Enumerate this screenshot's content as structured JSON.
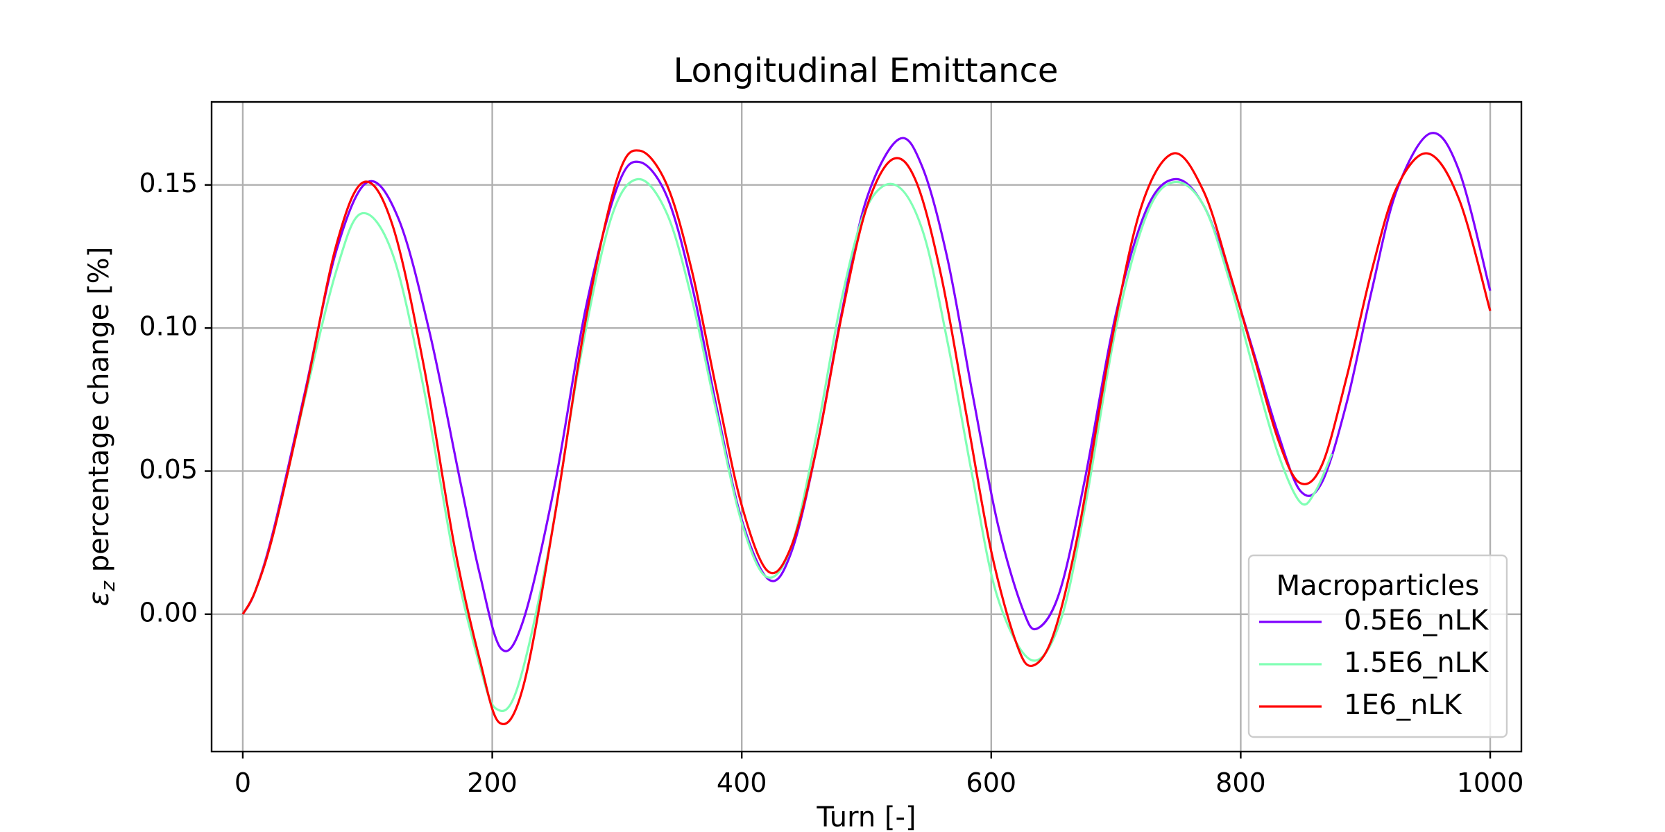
{
  "chart_data": {
    "type": "line",
    "title": "Longitudinal Emittance",
    "xlabel": "Turn [-]",
    "ylabel_symbol": "ε",
    "ylabel_subscript": "z",
    "ylabel_rest": " percentage change [%]",
    "xlim": [
      -25,
      1025
    ],
    "ylim": [
      -0.048,
      0.179
    ],
    "x_ticks": [
      0,
      200,
      400,
      600,
      800,
      1000
    ],
    "x_tick_labels": [
      "0",
      "200",
      "400",
      "600",
      "800",
      "1000"
    ],
    "y_ticks": [
      0.0,
      0.05,
      0.1,
      0.15
    ],
    "y_tick_labels": [
      "0.00",
      "0.05",
      "0.10",
      "0.15"
    ],
    "grid": true,
    "legend": {
      "title": "Macroparticles",
      "position": "lower-right"
    },
    "series": [
      {
        "name": "0.5E6_nLK",
        "color": "#7f00ff",
        "x": [
          0,
          10,
          25,
          50,
          75,
          100,
          125,
          150,
          175,
          190,
          207,
          225,
          250,
          275,
          300,
          318,
          340,
          360,
          380,
          400,
          422,
          440,
          460,
          480,
          500,
          526,
          545,
          565,
          585,
          605,
          625,
          637,
          655,
          675,
          700,
          725,
          748,
          770,
          790,
          810,
          830,
          848,
          865,
          885,
          905,
          925,
          952,
          975,
          1000
        ],
        "y": [
          0.0,
          0.008,
          0.03,
          0.078,
          0.127,
          0.151,
          0.138,
          0.098,
          0.045,
          0.014,
          -0.012,
          -0.002,
          0.045,
          0.107,
          0.149,
          0.158,
          0.146,
          0.115,
          0.072,
          0.033,
          0.012,
          0.022,
          0.058,
          0.105,
          0.145,
          0.166,
          0.156,
          0.124,
          0.077,
          0.032,
          0.002,
          -0.005,
          0.008,
          0.047,
          0.105,
          0.142,
          0.152,
          0.143,
          0.12,
          0.092,
          0.063,
          0.043,
          0.046,
          0.074,
          0.113,
          0.148,
          0.168,
          0.155,
          0.113
        ]
      },
      {
        "name": "1.5E6_nLK",
        "color": "#80ffb4",
        "x": [
          0,
          10,
          25,
          50,
          75,
          95,
          120,
          145,
          170,
          190,
          203,
          220,
          245,
          270,
          295,
          317,
          340,
          360,
          380,
          400,
          420,
          440,
          460,
          480,
          500,
          523,
          545,
          565,
          585,
          605,
          632,
          655,
          675,
          700,
          725,
          747,
          770,
          790,
          810,
          830,
          848,
          860,
          873
        ],
        "y": [
          0.0,
          0.008,
          0.029,
          0.076,
          0.12,
          0.14,
          0.126,
          0.079,
          0.018,
          -0.018,
          -0.033,
          -0.026,
          0.022,
          0.088,
          0.138,
          0.152,
          0.14,
          0.11,
          0.07,
          0.032,
          0.013,
          0.024,
          0.063,
          0.11,
          0.142,
          0.15,
          0.134,
          0.095,
          0.048,
          0.006,
          -0.016,
          -0.003,
          0.037,
          0.1,
          0.14,
          0.151,
          0.143,
          0.118,
          0.086,
          0.056,
          0.039,
          0.043,
          0.056
        ]
      },
      {
        "name": "1E6_nLK",
        "color": "#ff0000",
        "x": [
          0,
          10,
          25,
          50,
          75,
          97,
          120,
          145,
          170,
          190,
          206,
          225,
          250,
          275,
          300,
          318,
          340,
          360,
          380,
          400,
          421,
          440,
          460,
          480,
          500,
          521,
          540,
          560,
          580,
          600,
          620,
          633,
          650,
          670,
          695,
          720,
          746,
          770,
          790,
          810,
          830,
          847,
          865,
          885,
          905,
          925,
          950,
          975,
          1000
        ],
        "y": [
          0.0,
          0.008,
          0.029,
          0.077,
          0.129,
          0.151,
          0.136,
          0.087,
          0.023,
          -0.016,
          -0.038,
          -0.025,
          0.034,
          0.103,
          0.152,
          0.162,
          0.15,
          0.12,
          0.078,
          0.038,
          0.015,
          0.024,
          0.058,
          0.104,
          0.142,
          0.159,
          0.151,
          0.118,
          0.07,
          0.022,
          -0.01,
          -0.018,
          -0.007,
          0.029,
          0.092,
          0.142,
          0.161,
          0.148,
          0.121,
          0.091,
          0.061,
          0.046,
          0.052,
          0.083,
          0.12,
          0.149,
          0.161,
          0.145,
          0.106
        ]
      }
    ]
  }
}
